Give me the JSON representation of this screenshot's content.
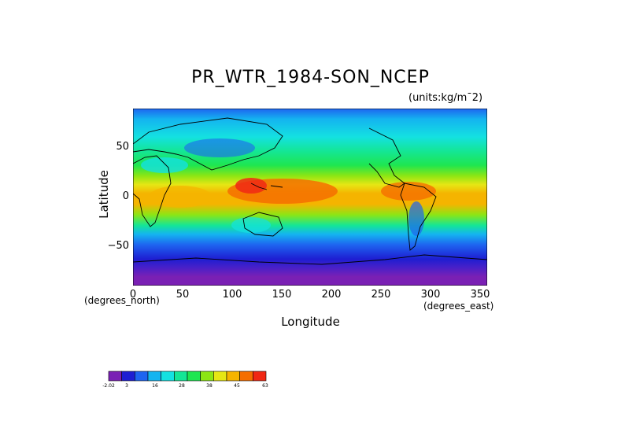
{
  "title": "PR_WTR_1984-SON_NCEP",
  "units": "(units:kg/m¯2)",
  "axes": {
    "x_title": "Longitude",
    "y_title": "Latitude",
    "x_units": "(degrees_east)",
    "y_units": "(degrees_north)",
    "x_ticks": [
      "0",
      "50",
      "100",
      "150",
      "200",
      "250",
      "300",
      "350"
    ],
    "y_ticks": [
      "50",
      "0",
      "−50"
    ]
  },
  "colorbar": {
    "labels": [
      "-2.02",
      "3",
      "16",
      "28",
      "38",
      "45",
      "63"
    ],
    "colors": [
      "#7a20b4",
      "#1e1ed2",
      "#1e64f0",
      "#14b4f0",
      "#14e1e1",
      "#14e696",
      "#1ee650",
      "#8ce614",
      "#e6e614",
      "#f5b400",
      "#f56e00",
      "#f02814"
    ]
  },
  "chart_data": {
    "type": "heatmap",
    "title": "PR_WTR_1984-SON_NCEP",
    "units": "kg/m^2",
    "xlabel": "Longitude",
    "ylabel": "Latitude",
    "xlim": [
      0,
      357.5
    ],
    "ylim": [
      -90,
      90
    ],
    "x_ticks": [
      0,
      50,
      100,
      150,
      200,
      250,
      300,
      350
    ],
    "y_ticks": [
      50,
      0,
      -50
    ],
    "colorbar_levels": [
      -2.02,
      3,
      16,
      28,
      38,
      45,
      63
    ],
    "description_values_by_latitude": [
      {
        "lat": 80,
        "approx": 6
      },
      {
        "lat": 60,
        "approx": 12
      },
      {
        "lat": 40,
        "approx": 22
      },
      {
        "lat": 20,
        "approx": 32
      },
      {
        "lat": 5,
        "approx": 48
      },
      {
        "lat": -10,
        "approx": 40
      },
      {
        "lat": -30,
        "approx": 24
      },
      {
        "lat": -50,
        "approx": 12
      },
      {
        "lat": -70,
        "approx": 4
      },
      {
        "lat": -85,
        "approx": 1
      }
    ]
  }
}
